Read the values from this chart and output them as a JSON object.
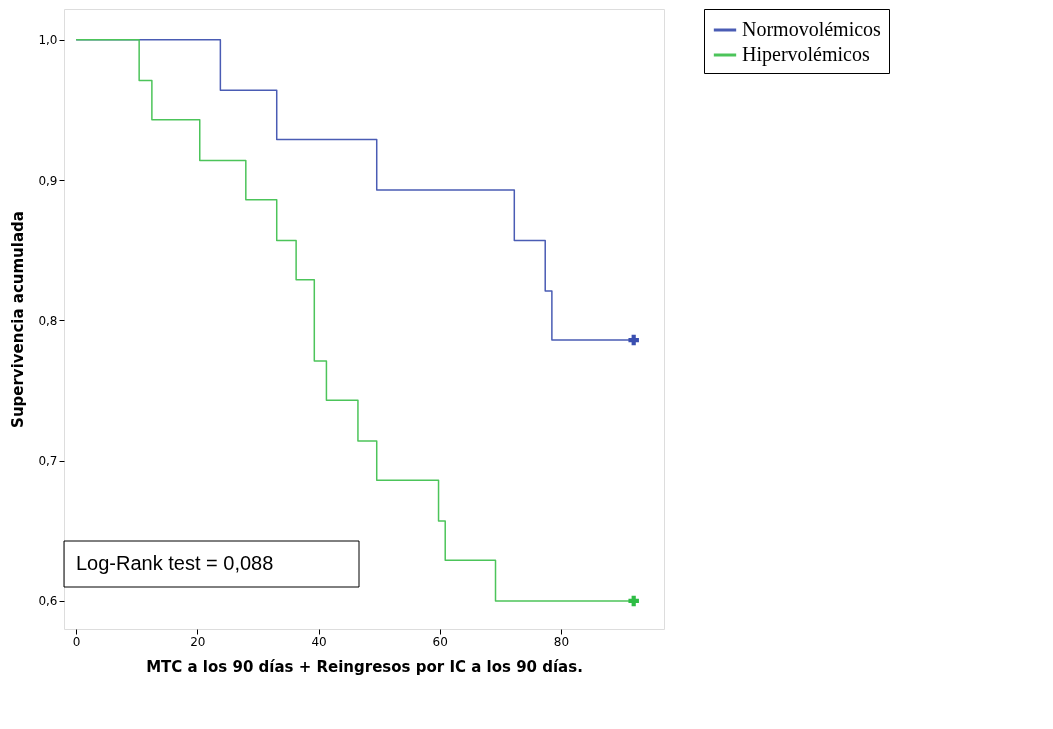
{
  "chart_data": {
    "type": "step",
    "xlabel": "MTC a los 90 días + Reingresos por IC a los 90 días.",
    "ylabel": "Supervivencia acumulada",
    "series": [
      {
        "name": "Normovolémicos",
        "color": "#4a5cb4",
        "x": [
          0,
          23.8,
          33.1,
          49.6,
          72.3,
          77.4,
          78.5,
          92
        ],
        "values": [
          1.0,
          0.964,
          0.929,
          0.893,
          0.857,
          0.821,
          0.786,
          0.786
        ]
      },
      {
        "name": "Hipervolémicos",
        "color": "#4cc45a",
        "x": [
          0,
          10.4,
          12.5,
          20.4,
          28,
          33.1,
          36.3,
          39.3,
          41.3,
          46.5,
          49.6,
          59.8,
          60.9,
          69.2,
          92
        ],
        "values": [
          1.0,
          0.971,
          0.943,
          0.914,
          0.886,
          0.857,
          0.829,
          0.771,
          0.743,
          0.714,
          0.686,
          0.657,
          0.629,
          0.6,
          0.6
        ]
      },
      {
        "type": "scatter",
        "marker": "cross",
        "color": "#3a4fb0",
        "x": [
          92
        ],
        "values": [
          0.786
        ]
      },
      {
        "type": "scatter",
        "marker": "cross",
        "color": "#2ebd45",
        "x": [
          92
        ],
        "values": [
          0.6
        ]
      }
    ],
    "xlim": [
      -2,
      97
    ],
    "xticks": [
      0,
      20,
      40,
      60,
      80
    ],
    "ylim": [
      0.58,
      1.022
    ],
    "yticks": [
      {
        "value": 0.6,
        "label": "0,6"
      },
      {
        "value": 0.7,
        "label": "0,7"
      },
      {
        "value": 0.8,
        "label": "0,8"
      },
      {
        "value": 0.9,
        "label": "0,9"
      },
      {
        "value": 1.0,
        "label": "1,0"
      }
    ],
    "annotations": [
      "Log-Rank test = 0,088"
    ],
    "legend": "right",
    "grid": false
  }
}
